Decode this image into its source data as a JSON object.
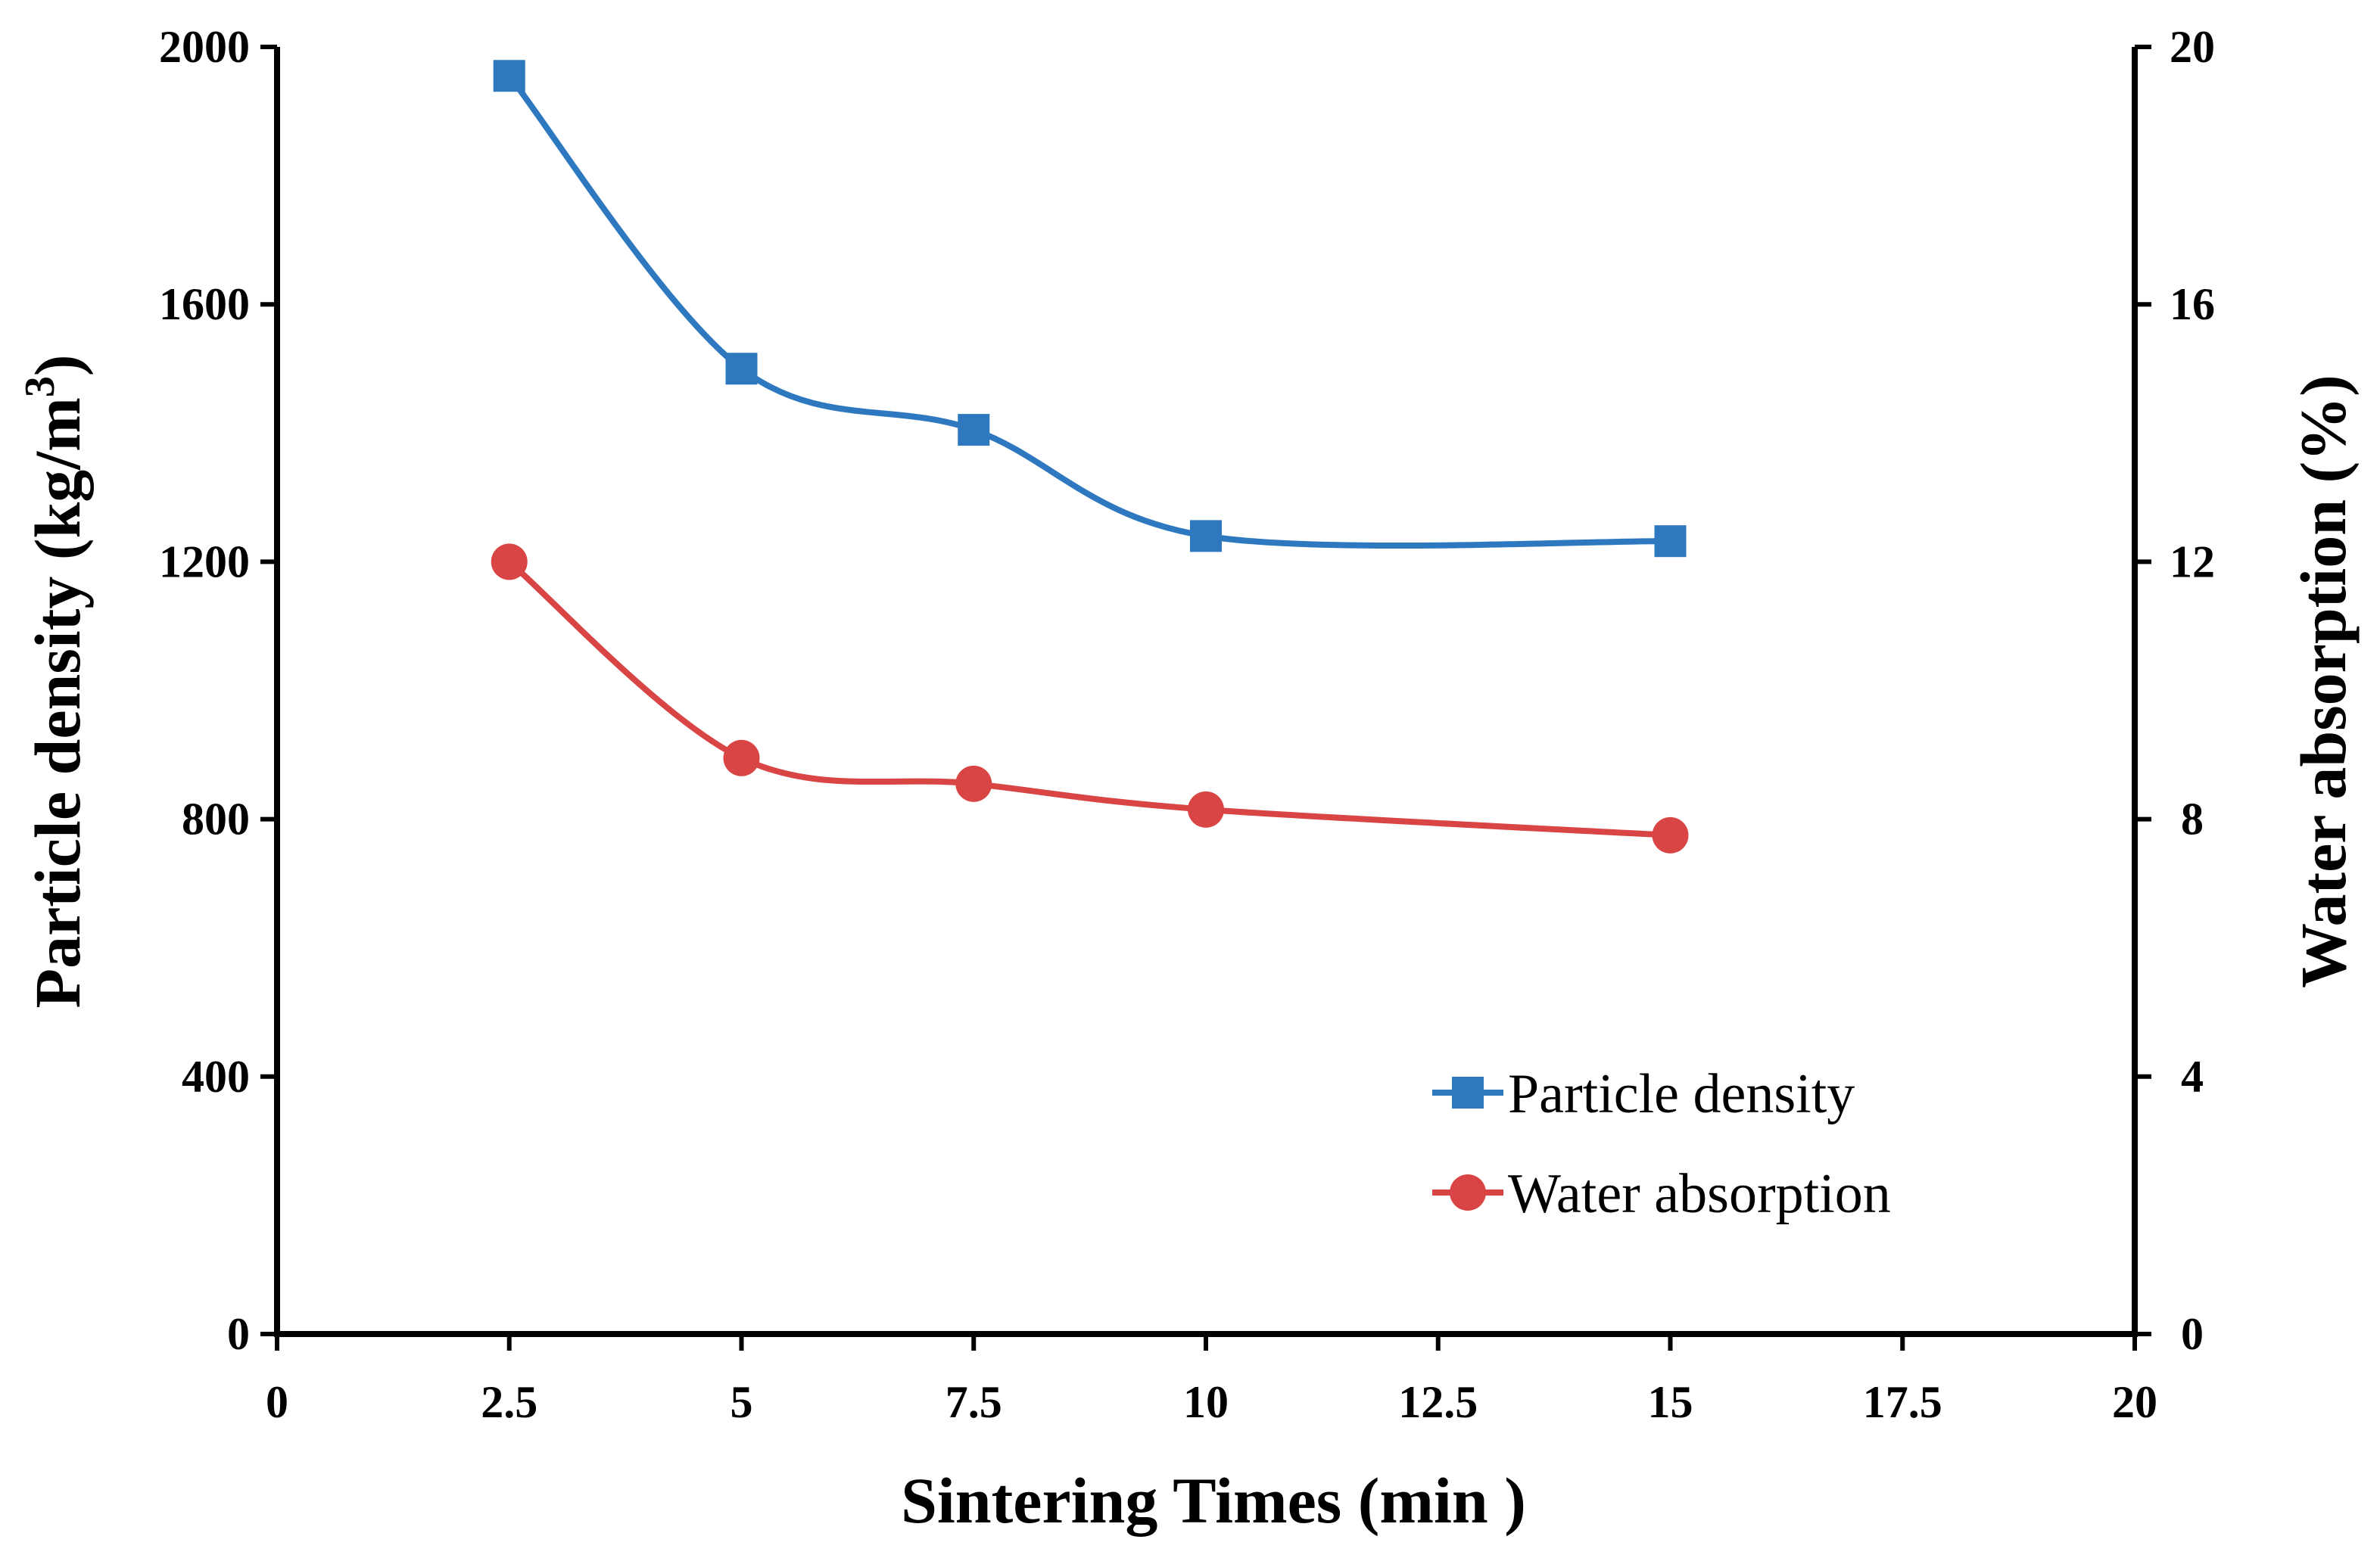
{
  "chart_data": {
    "type": "line",
    "title": "",
    "xlabel": "Sintering Times (min )",
    "ylabel_left": "Particle density (kg/m",
    "ylabel_left_sup": "3",
    "ylabel_left_close": ")",
    "ylabel_right": "Water absorption (%)",
    "xlim": [
      0,
      20
    ],
    "ylim_left": [
      0,
      2000
    ],
    "ylim_right": [
      0,
      20
    ],
    "x_ticks": [
      "0",
      "2.5",
      "5",
      "7.5",
      "10",
      "12.5",
      "15",
      "17.5",
      "20"
    ],
    "x_tick_values": [
      0,
      2.5,
      5,
      7.5,
      10,
      12.5,
      15,
      17.5,
      20
    ],
    "y_left_ticks": [
      "0",
      "400",
      "800",
      "1200",
      "1600",
      "2000"
    ],
    "y_left_tick_values": [
      0,
      400,
      800,
      1200,
      1600,
      2000
    ],
    "y_right_ticks": [
      "0",
      "4",
      "8",
      "12",
      "16",
      "20"
    ],
    "y_right_tick_values": [
      0,
      4,
      8,
      12,
      16,
      20
    ],
    "grid": false,
    "legend_position": "bottom-right",
    "series": [
      {
        "name": "Particle density",
        "axis": "left",
        "marker": "square",
        "color": "#2e78c0",
        "x": [
          2.5,
          5,
          7.5,
          10,
          15
        ],
        "y": [
          1955,
          1500,
          1405,
          1240,
          1232
        ]
      },
      {
        "name": "Water absorption",
        "axis": "right",
        "marker": "circle",
        "color": "#d94545",
        "x": [
          2.5,
          5,
          7.5,
          10,
          15
        ],
        "y": [
          12.0,
          8.95,
          8.55,
          8.15,
          7.75
        ]
      }
    ]
  }
}
